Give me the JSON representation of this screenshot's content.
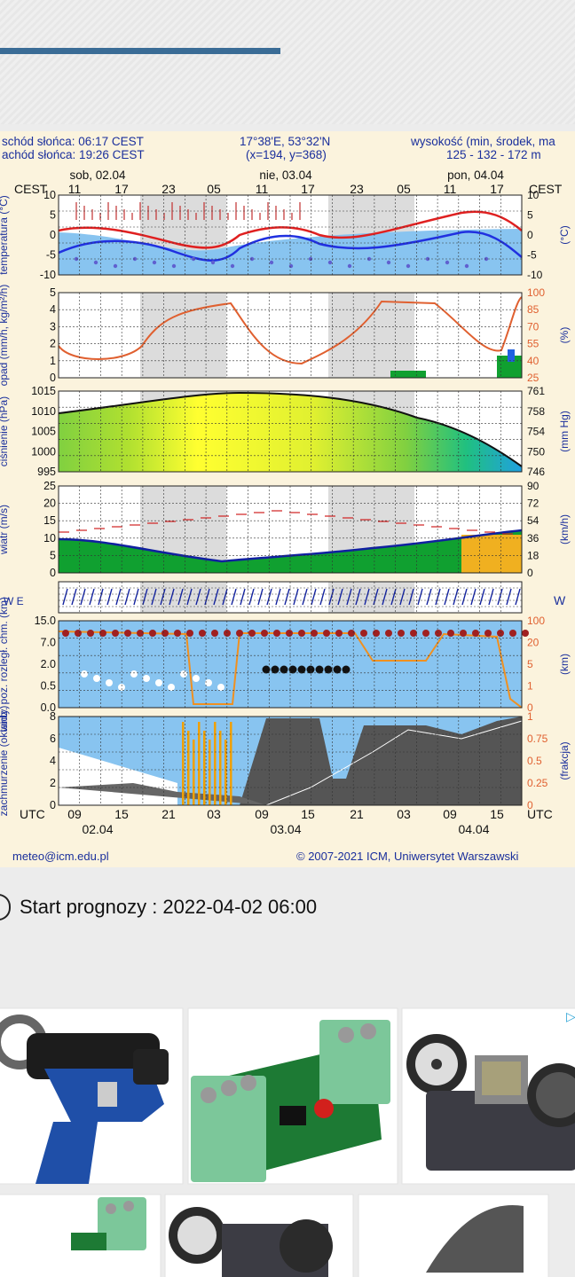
{
  "header": {
    "sunrise": "schód słońca: 06:17 CEST",
    "sunset": "achód słońca: 19:26 CEST",
    "coords": "17°38'E, 53°32'N",
    "grid": "(x=194,  y=368)",
    "alt_title": "wysokość (min, środek, ma",
    "alt_values": "125 - 132 - 172 m"
  },
  "days": [
    "sob, 02.04",
    "nie, 03.04",
    "pon, 04.04"
  ],
  "cest_label": "CEST",
  "utc_label": "UTC",
  "cest_hours": [
    "11",
    "17",
    "23",
    "05",
    "11",
    "17",
    "23",
    "05",
    "11",
    "17"
  ],
  "utc_hours": [
    "09",
    "15",
    "21",
    "03",
    "09",
    "15",
    "21",
    "03",
    "09",
    "15"
  ],
  "bottom_dates": [
    "02.04",
    "03.04",
    "04.04"
  ],
  "panels": [
    {
      "left_label": "temperatura (°C)",
      "left_ticks": [
        "10",
        "5",
        "0",
        "-5",
        "-10"
      ],
      "right_label": "(°C)",
      "right_ticks": [
        "10",
        "5",
        "0",
        "-5",
        "-10"
      ]
    },
    {
      "left_label": "opad (mm/h, kg/m²/h)",
      "left_ticks": [
        "5",
        "4",
        "3",
        "2",
        "1",
        "0"
      ],
      "right_label": "(%)",
      "right_ticks": [
        "100",
        "85",
        "70",
        "55",
        "40",
        "25"
      ]
    },
    {
      "left_label": "ciśnienie (hPa)",
      "left_ticks": [
        "1015",
        "1010",
        "1005",
        "1000",
        "995"
      ],
      "right_label": "(mm Hg)",
      "right_ticks": [
        "761",
        "758",
        "754",
        "750",
        "746"
      ]
    },
    {
      "left_label": "wiatr (m/s)",
      "left_ticks": [
        "25",
        "20",
        "15",
        "10",
        "5",
        "0"
      ],
      "right_label": "(km/h)",
      "right_ticks": [
        "90",
        "72",
        "54",
        "36",
        "18",
        "0"
      ]
    },
    {
      "left_label": "W E",
      "right_label": "W"
    },
    {
      "left_label": "widz. poz. rozległ. chm. (km)",
      "left_ticks": [
        "15.0",
        "7.0",
        "2.0",
        "0.5",
        "0.0"
      ],
      "right_label": "(km)",
      "right_ticks": [
        "100",
        "20",
        "5",
        "1",
        "0"
      ]
    },
    {
      "left_label": "zachmurzenie (oktanty)",
      "left_ticks": [
        "8",
        "6",
        "4",
        "2",
        "0"
      ],
      "right_label": "(frakcja)",
      "right_ticks": [
        "1",
        "0.75",
        "0.5",
        "0.25",
        "0"
      ]
    }
  ],
  "footer": {
    "email": "meteo@icm.edu.pl",
    "copyright": "© 2007-2021 ICM, Uniwersytet Warszawski"
  },
  "forecast_start": {
    "label": "Start prognozy : 2022-04-02 06:00"
  },
  "ads": [
    {
      "name": "ad-crimping-tool"
    },
    {
      "name": "ad-led-module"
    },
    {
      "name": "ad-film-scanner"
    },
    {
      "name": "ad-led-module-2"
    },
    {
      "name": "ad-film-scanner-2"
    },
    {
      "name": "ad-mouse"
    }
  ],
  "colors": {
    "label_blue": "#1a2f9c",
    "temp_red": "#e02020",
    "temp_blue": "#2030e0",
    "rh_orange": "#e06030",
    "bg_cream": "#fbf3dd"
  }
}
